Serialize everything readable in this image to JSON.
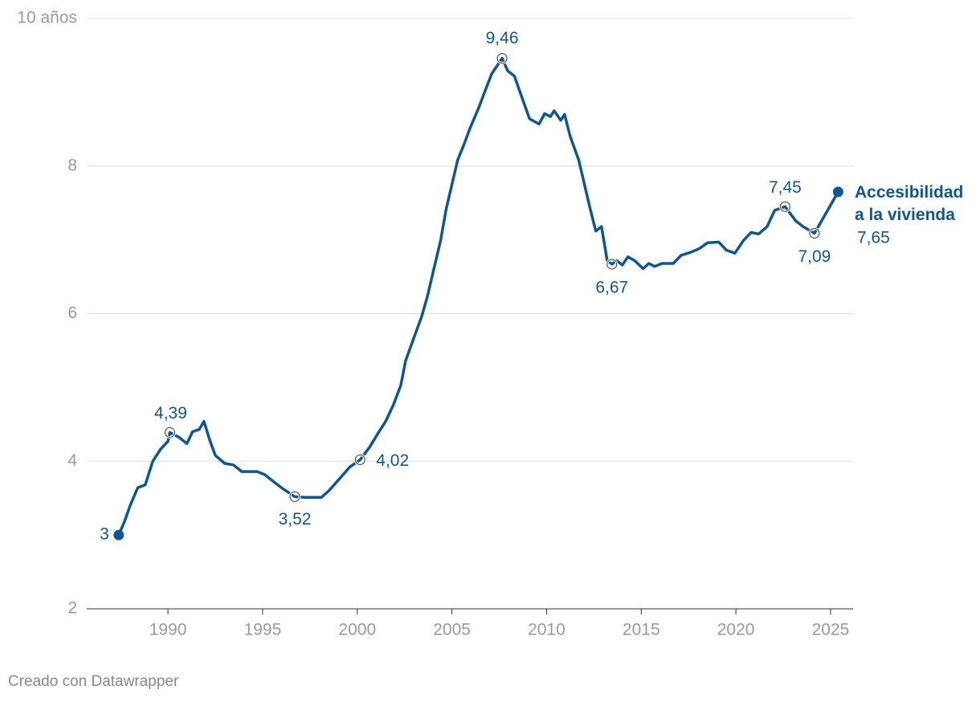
{
  "chart_data": {
    "type": "line",
    "x": [
      1987.4,
      1987.7,
      1988.0,
      1988.4,
      1988.8,
      1989.2,
      1989.6,
      1990.0,
      1990.1,
      1990.55,
      1991.0,
      1991.3,
      1991.65,
      1991.9,
      1992.2,
      1992.5,
      1993.0,
      1993.45,
      1993.9,
      1994.3,
      1994.7,
      1995.1,
      1995.55,
      1996.0,
      1996.7,
      1997.25,
      1997.7,
      1998.1,
      1998.5,
      1998.95,
      1999.6,
      2000.15,
      2000.65,
      2001.1,
      2001.5,
      2001.9,
      2002.3,
      2002.55,
      2003.0,
      2003.4,
      2003.7,
      2004.05,
      2004.4,
      2004.7,
      2005.0,
      2005.3,
      2005.65,
      2005.95,
      2006.4,
      2006.8,
      2007.1,
      2007.65,
      2007.95,
      2008.3,
      2008.6,
      2009.1,
      2009.6,
      2009.9,
      2010.2,
      2010.4,
      2010.75,
      2010.95,
      2011.25,
      2011.7,
      2012.0,
      2012.3,
      2012.6,
      2012.9,
      2013.2,
      2013.45,
      2013.7,
      2014.0,
      2014.3,
      2014.65,
      2015.1,
      2015.4,
      2015.7,
      2016.1,
      2016.7,
      2017.1,
      2017.6,
      2018.05,
      2018.5,
      2019.1,
      2019.5,
      2019.95,
      2020.4,
      2020.8,
      2021.2,
      2021.65,
      2022.05,
      2022.6,
      2023.15,
      2023.55,
      2024.15,
      2024.6,
      2025.4
    ],
    "series": [
      {
        "name": "Accesibilidad a la vivienda",
        "color": "#0d5794",
        "values": [
          3.0,
          3.18,
          3.4,
          3.64,
          3.68,
          4.0,
          4.16,
          4.27,
          4.39,
          4.33,
          4.24,
          4.4,
          4.43,
          4.54,
          4.29,
          4.08,
          3.97,
          3.95,
          3.86,
          3.86,
          3.86,
          3.82,
          3.73,
          3.64,
          3.52,
          3.51,
          3.51,
          3.51,
          3.6,
          3.73,
          3.92,
          4.02,
          4.19,
          4.38,
          4.54,
          4.76,
          5.03,
          5.36,
          5.68,
          5.96,
          6.23,
          6.61,
          6.99,
          7.42,
          7.75,
          8.08,
          8.3,
          8.51,
          8.78,
          9.05,
          9.25,
          9.46,
          9.29,
          9.22,
          9.0,
          8.64,
          8.57,
          8.71,
          8.67,
          8.75,
          8.62,
          8.7,
          8.4,
          8.08,
          7.75,
          7.42,
          7.12,
          7.18,
          6.72,
          6.67,
          6.72,
          6.66,
          6.77,
          6.72,
          6.61,
          6.68,
          6.64,
          6.68,
          6.68,
          6.79,
          6.83,
          6.88,
          6.96,
          6.97,
          6.86,
          6.82,
          6.99,
          7.1,
          7.08,
          7.18,
          7.4,
          7.45,
          7.26,
          7.18,
          7.09,
          7.29,
          7.65
        ]
      }
    ],
    "annotations": [
      {
        "x": 1987.4,
        "y": 3,
        "label": "3",
        "marker": "filled"
      },
      {
        "x": 1990.1,
        "y": 4.39,
        "label": "4,39",
        "marker": "open"
      },
      {
        "x": 1996.7,
        "y": 3.52,
        "label": "3,52",
        "marker": "open"
      },
      {
        "x": 2000.15,
        "y": 4.02,
        "label": "4,02",
        "marker": "open"
      },
      {
        "x": 2007.65,
        "y": 9.46,
        "label": "9,46",
        "marker": "open"
      },
      {
        "x": 2013.45,
        "y": 6.67,
        "label": "6,67",
        "marker": "open"
      },
      {
        "x": 2022.6,
        "y": 7.45,
        "label": "7,45",
        "marker": "open"
      },
      {
        "x": 2024.15,
        "y": 7.09,
        "label": "7,09",
        "marker": "open"
      },
      {
        "x": 2025.4,
        "y": 7.65,
        "label": "7,65",
        "marker": "filled"
      }
    ],
    "xlim": [
      1985.71,
      2026.19
    ],
    "xticks": [
      1990,
      1995,
      2000,
      2005,
      2010,
      2015,
      2020,
      2025
    ],
    "ylim": [
      2,
      10
    ],
    "yticks": [
      2,
      4,
      6,
      8,
      {
        "value": 10,
        "label": "10 años"
      }
    ],
    "grid": true,
    "footer": "Creado con Datawrapper"
  }
}
